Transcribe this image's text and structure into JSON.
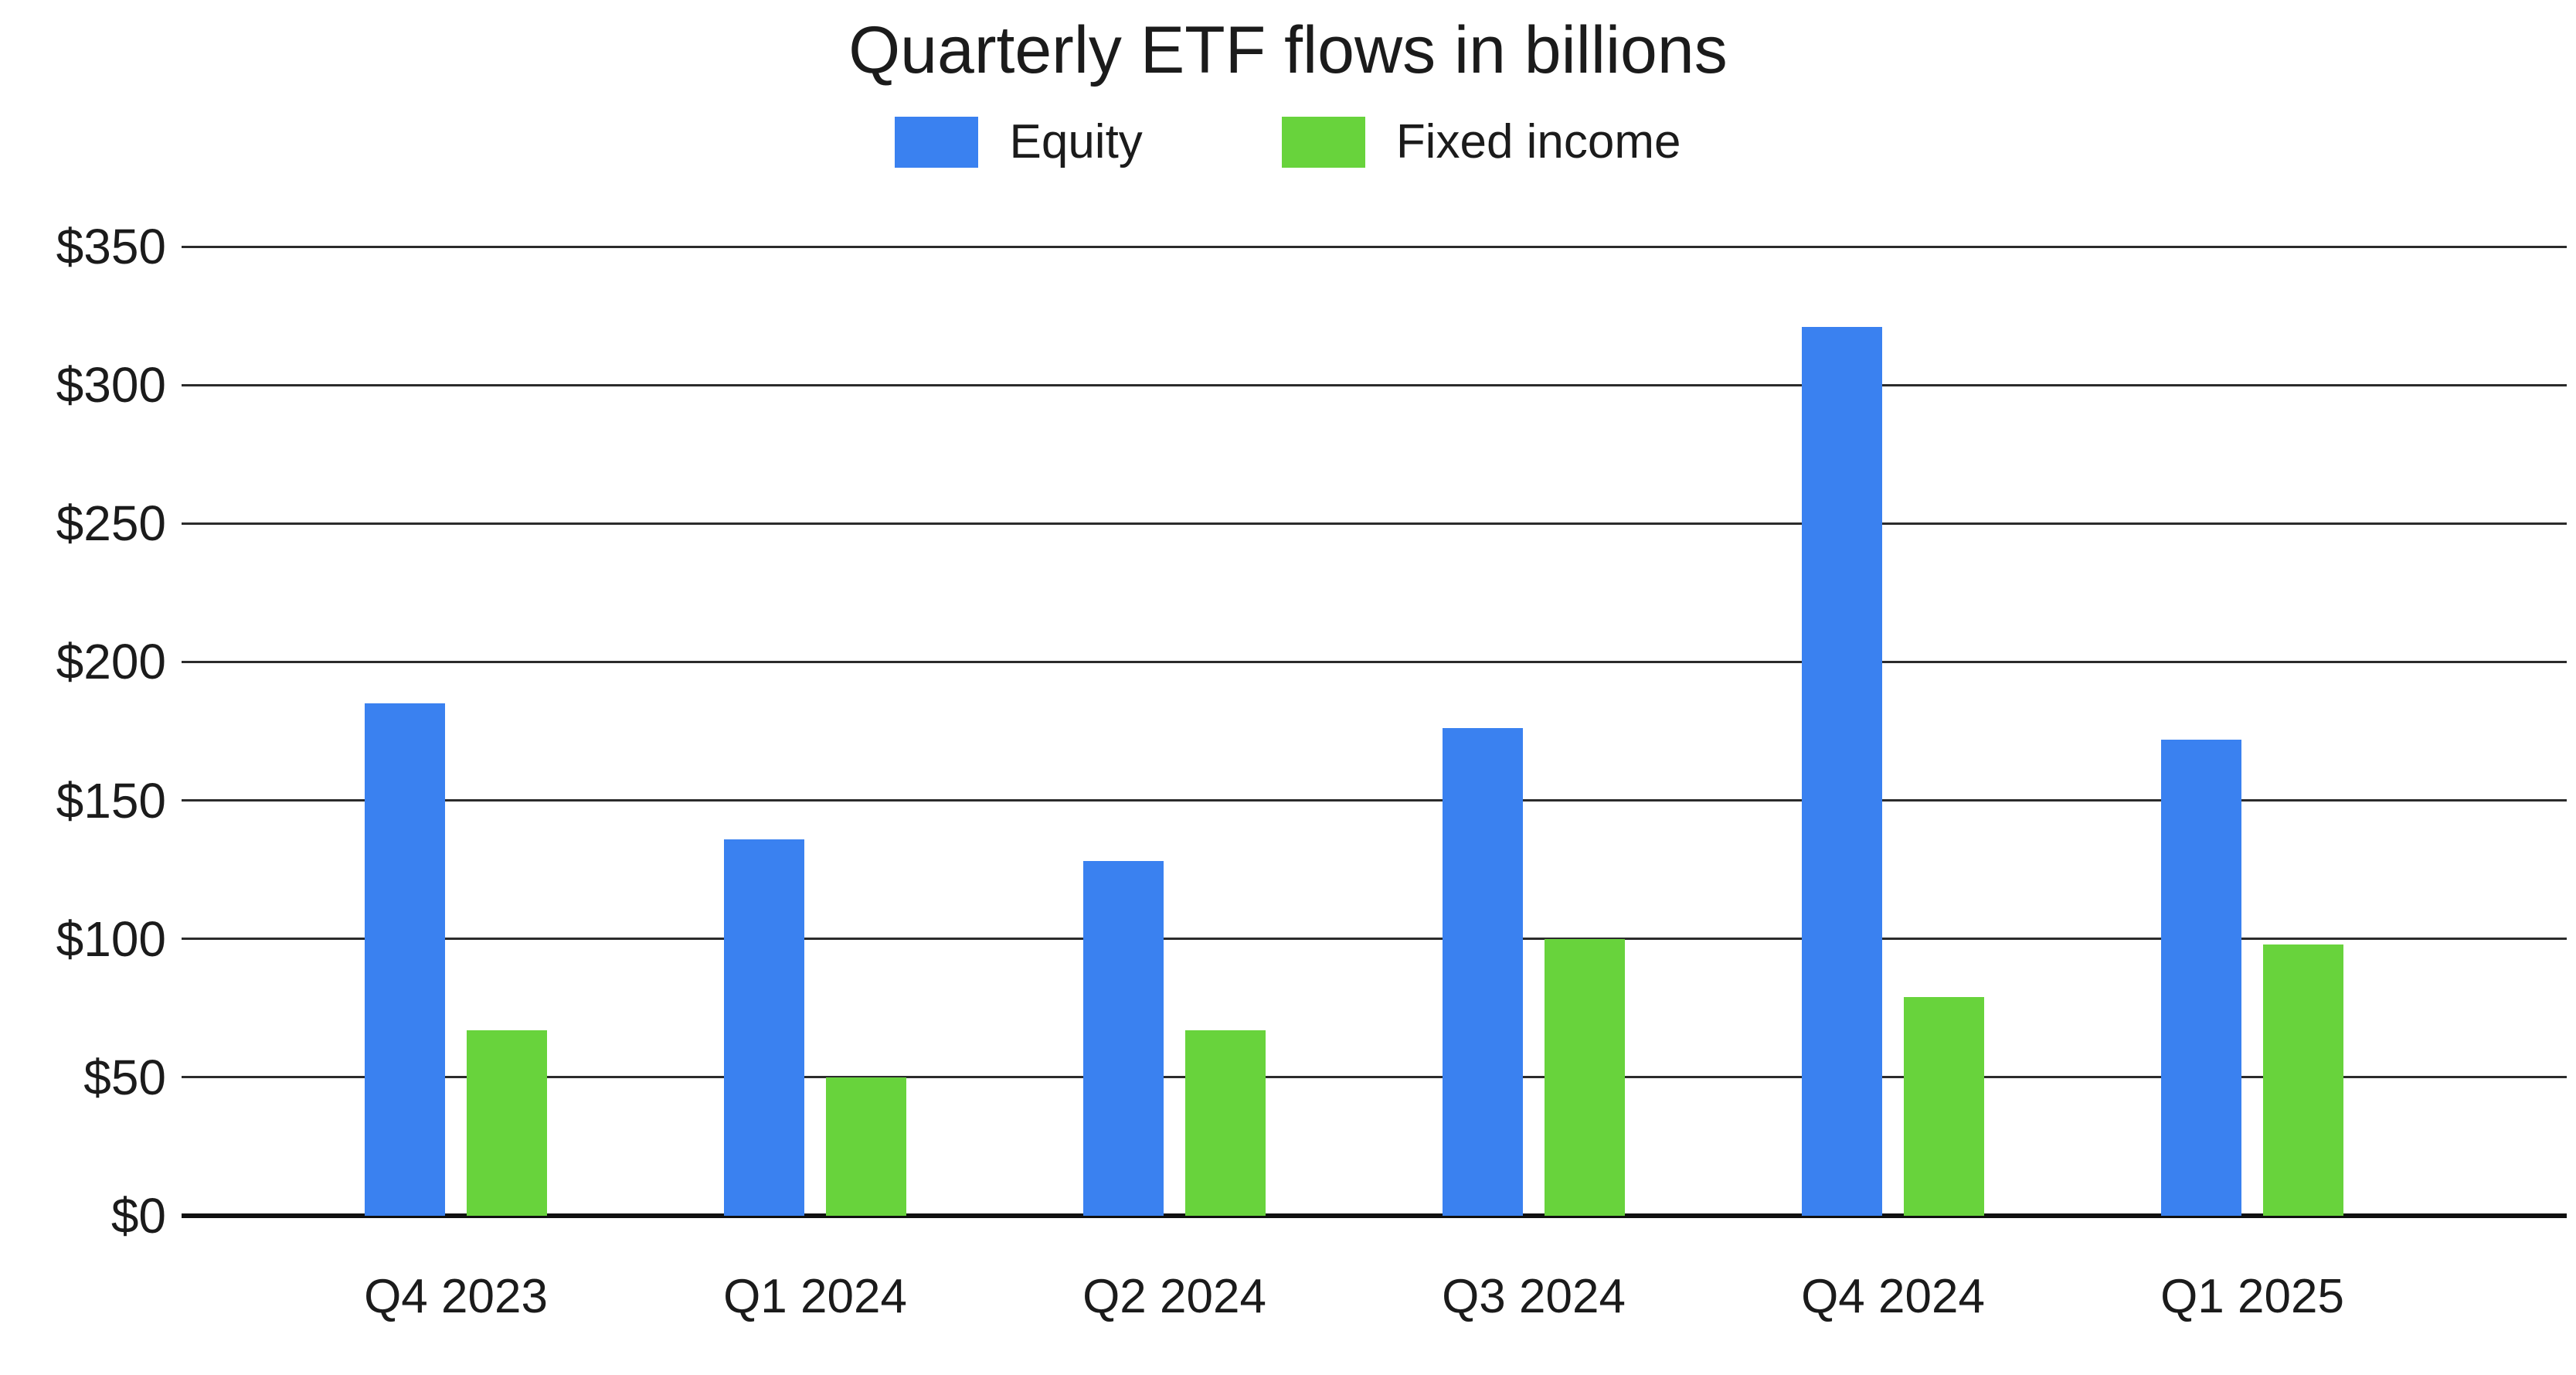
{
  "title": "Quarterly ETF flows in billions",
  "colors": {
    "background": "#FFFFFF",
    "text": "#1B1B1B",
    "gridline": "#2B2B2B",
    "axis_line": "#101010",
    "equity": "#3A81F0",
    "fixed_income": "#68D33C"
  },
  "chart_data": {
    "type": "bar",
    "title": "Quarterly ETF flows in billions",
    "categories": [
      "Q4 2023",
      "Q1 2024",
      "Q2 2024",
      "Q3 2024",
      "Q4 2024",
      "Q1 2025"
    ],
    "series": [
      {
        "name": "Equity",
        "color": "#3A81F0",
        "values": [
          185,
          136,
          128,
          176,
          321,
          172
        ]
      },
      {
        "name": "Fixed income",
        "color": "#68D33C",
        "values": [
          67,
          50,
          67,
          100,
          79,
          98
        ]
      }
    ],
    "xlabel": "",
    "ylabel": "",
    "ylim": [
      0,
      350
    ],
    "ytick_step": 50,
    "ytick_labels": [
      "$0",
      "$50",
      "$100",
      "$150",
      "$200",
      "$250",
      "$300",
      "$350"
    ],
    "grid": true,
    "legend_position": "top-center",
    "value_unit": "billions USD"
  }
}
